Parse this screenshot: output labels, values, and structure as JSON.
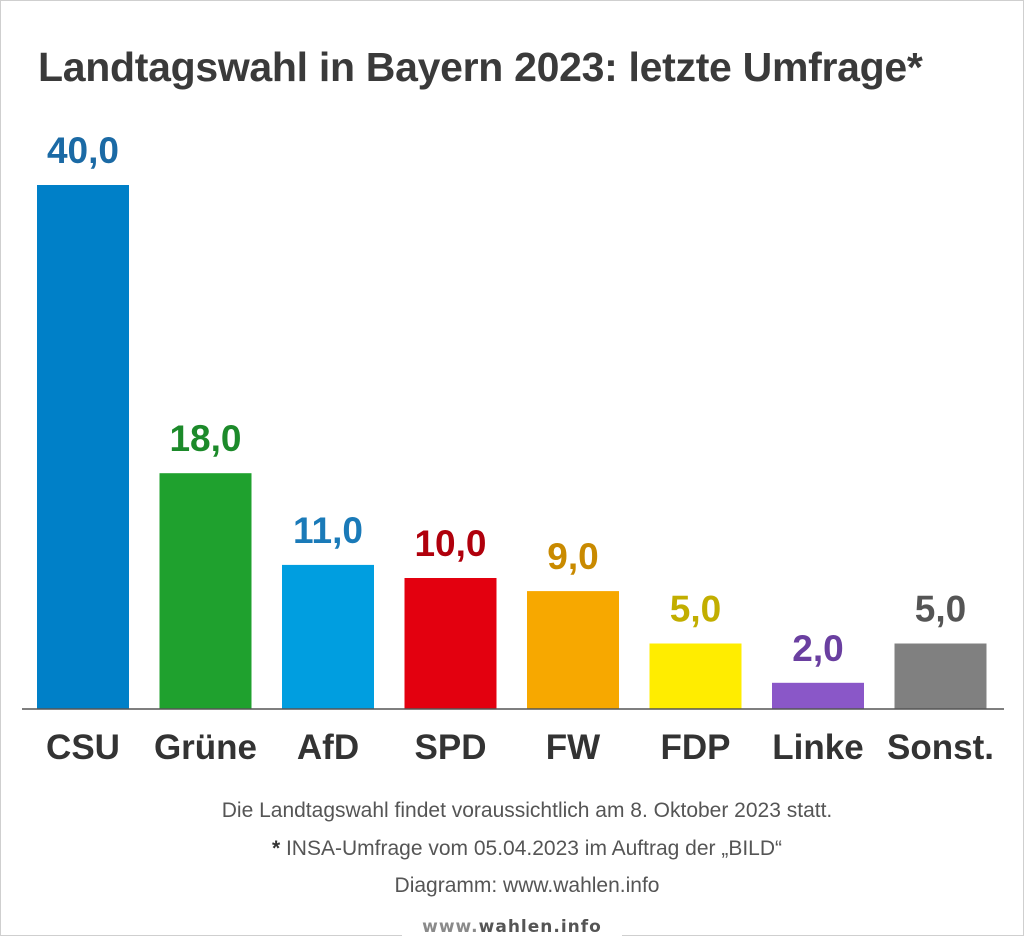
{
  "title": "Landtagswahl in Bayern 2023: letzte Umfrage*",
  "chart_data": {
    "type": "bar",
    "title": "Landtagswahl in Bayern 2023: letzte Umfrage*",
    "xlabel": "",
    "ylabel": "",
    "ylim": [
      0,
      40
    ],
    "grid": false,
    "legend": "none",
    "categories": [
      "CSU",
      "Grüne",
      "AfD",
      "SPD",
      "FW",
      "FDP",
      "Linke",
      "Sonst."
    ],
    "values": [
      40.0,
      18.0,
      11.0,
      10.0,
      9.0,
      5.0,
      2.0,
      5.0
    ],
    "value_labels": [
      "40,0",
      "18,0",
      "11,0",
      "10,0",
      "9,0",
      "5,0",
      "2,0",
      "5,0"
    ],
    "bar_colors": [
      "#0080c8",
      "#1fa12e",
      "#009ee0",
      "#e3000f",
      "#f7a800",
      "#ffed00",
      "#8a57c8",
      "#808080"
    ],
    "label_colors": [
      "#1b6aa5",
      "#1c8a2a",
      "#1a7ab8",
      "#b0000c",
      "#c98a00",
      "#c2ae00",
      "#6a3fa0",
      "#555555"
    ]
  },
  "footnotes": {
    "line1": "Die Landtagswahl findet voraussichtlich am 8. Oktober 2023 statt.",
    "star": "*",
    "line2": " INSA-Umfrage vom 05.04.2023 im Auftrag der „BILD“",
    "line3": "Diagramm: www.wahlen.info"
  },
  "watermark": {
    "prefix": "www.",
    "brand": "wahlen.info"
  }
}
